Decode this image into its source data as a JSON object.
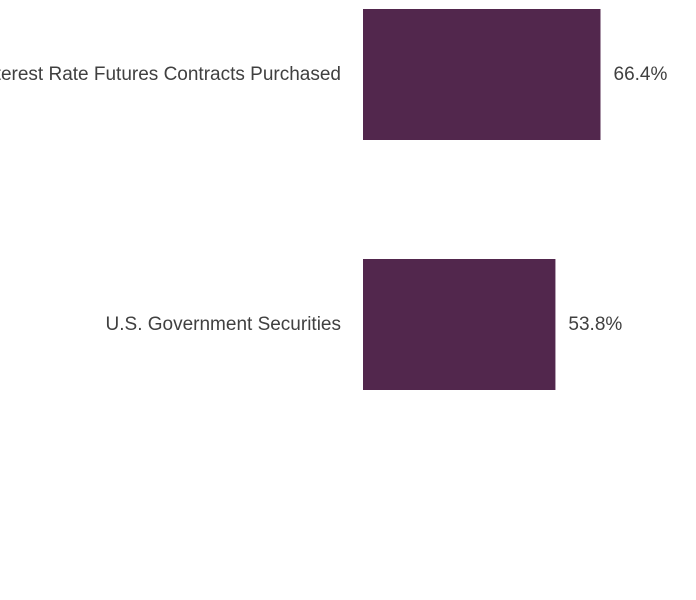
{
  "chart_data": {
    "type": "bar",
    "orientation": "horizontal",
    "categories": [
      "Interest Rate Futures Contracts Purchased",
      "U.S. Government Securities"
    ],
    "values": [
      66.4,
      53.8
    ],
    "value_labels": [
      "66.4%",
      "53.8%"
    ],
    "unit": "%",
    "xlim": [
      0,
      100
    ],
    "grid": false,
    "legend": "none",
    "colors": {
      "bar": "#52274d",
      "text": "#404040",
      "background": "#ffffff"
    }
  }
}
